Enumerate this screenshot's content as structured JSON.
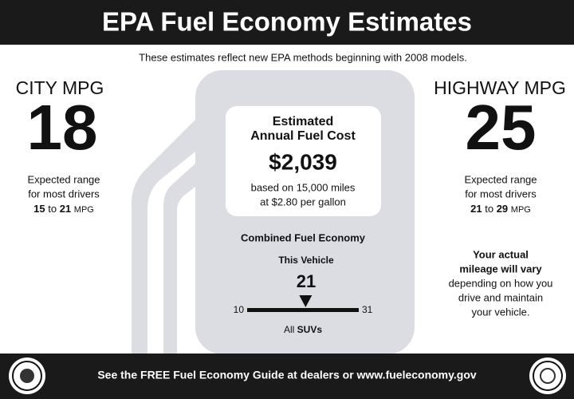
{
  "header": {
    "title": "EPA Fuel Economy Estimates"
  },
  "subtitle": "These estimates reflect new EPA methods beginning with 2008 models.",
  "city": {
    "label": "CITY MPG",
    "value": "18",
    "range_line1": "Expected range",
    "range_line2": "for most drivers",
    "low": "15",
    "to": "to",
    "high": "21",
    "unit": "MPG"
  },
  "highway": {
    "label": "HIGHWAY MPG",
    "value": "25",
    "range_line1": "Expected range",
    "range_line2": "for most drivers",
    "low": "21",
    "to": "to",
    "high": "29",
    "unit": "MPG"
  },
  "cost": {
    "title_line1": "Estimated",
    "title_line2": "Annual Fuel Cost",
    "amount": "$2,039",
    "note_line1": "based on 15,000 miles",
    "note_line2": "at $2.80 per gallon"
  },
  "combined": {
    "title": "Combined Fuel Economy",
    "vehicle_label": "This Vehicle",
    "value": 21,
    "scale_min": 10,
    "scale_max": 31,
    "class_prefix": "All",
    "class_name": "SUVs"
  },
  "notice": {
    "line1": "Your actual",
    "line2": "mileage will vary",
    "line3": "depending on how you",
    "line4": "drive and maintain",
    "line5": "your vehicle."
  },
  "footer": "See the FREE Fuel Economy Guide at dealers or www.fueleconomy.gov"
}
